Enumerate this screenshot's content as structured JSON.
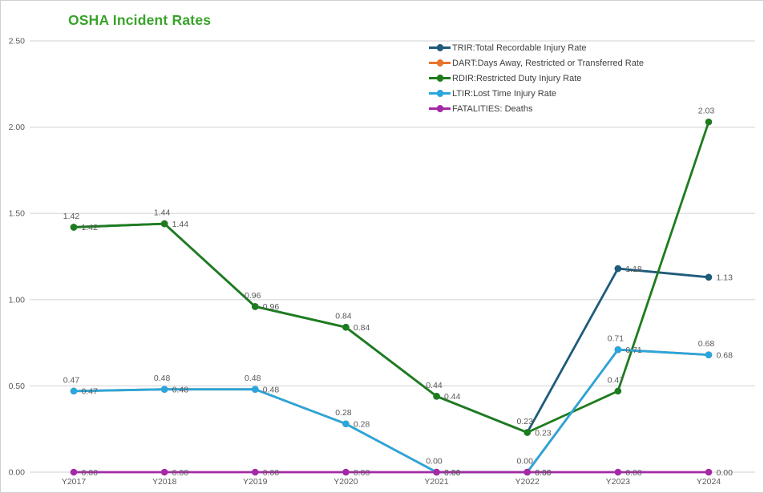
{
  "title": "OSHA Incident Rates",
  "title_color": "#38a32a",
  "background_color": "#ffffff",
  "grid_color": "#d9d9d9",
  "axis_label_color": "#595959",
  "data_label_color": "#595959",
  "legend_text_color": "#404040",
  "chart_data": {
    "type": "line",
    "title": "OSHA Incident Rates",
    "xlabel": "",
    "ylabel": "",
    "categories": [
      "Y2017",
      "Y2018",
      "Y2019",
      "Y2020",
      "Y2021",
      "Y2022",
      "Y2023",
      "Y2024"
    ],
    "y_ticks": [
      "0.00",
      "0.50",
      "1.00",
      "1.50",
      "2.00",
      "2.50"
    ],
    "ylim": [
      0,
      2.5
    ],
    "grid": true,
    "legend_position": "top-right",
    "data_labels_visible": true,
    "series": [
      {
        "name": "TRIR:Total Recordable Injury Rate",
        "short": "TRIR",
        "color": "#1f5b7a",
        "values": [
          1.42,
          1.44,
          0.96,
          0.84,
          0.44,
          0.23,
          1.18,
          1.13
        ],
        "label_side": "right"
      },
      {
        "name": "DART:Days Away, Restricted or Transferred Rate",
        "short": "DART",
        "color": "#e9742f",
        "values": [
          0.47,
          0.48,
          0.48,
          0.28,
          0.0,
          0.0,
          0.71,
          0.68
        ],
        "label_side": "right"
      },
      {
        "name": "RDIR:Restricted Duty Injury Rate",
        "short": "RDIR",
        "color": "#1e7c1e",
        "values": [
          1.42,
          1.44,
          0.96,
          0.84,
          0.44,
          0.23,
          0.47,
          2.03
        ],
        "label_side": "above"
      },
      {
        "name": "LTIR:Lost Time Injury Rate",
        "short": "LTIR",
        "color": "#29a6dc",
        "values": [
          0.47,
          0.48,
          0.48,
          0.28,
          0.0,
          0.0,
          0.71,
          0.68
        ],
        "label_side": "above"
      },
      {
        "name": "FATALITIES: Deaths",
        "short": "FATALITIES",
        "color": "#a429a4",
        "values": [
          0.0,
          0.0,
          0.0,
          0.0,
          0.0,
          0.0,
          0.0,
          0.0
        ],
        "label_side": "right"
      }
    ]
  }
}
